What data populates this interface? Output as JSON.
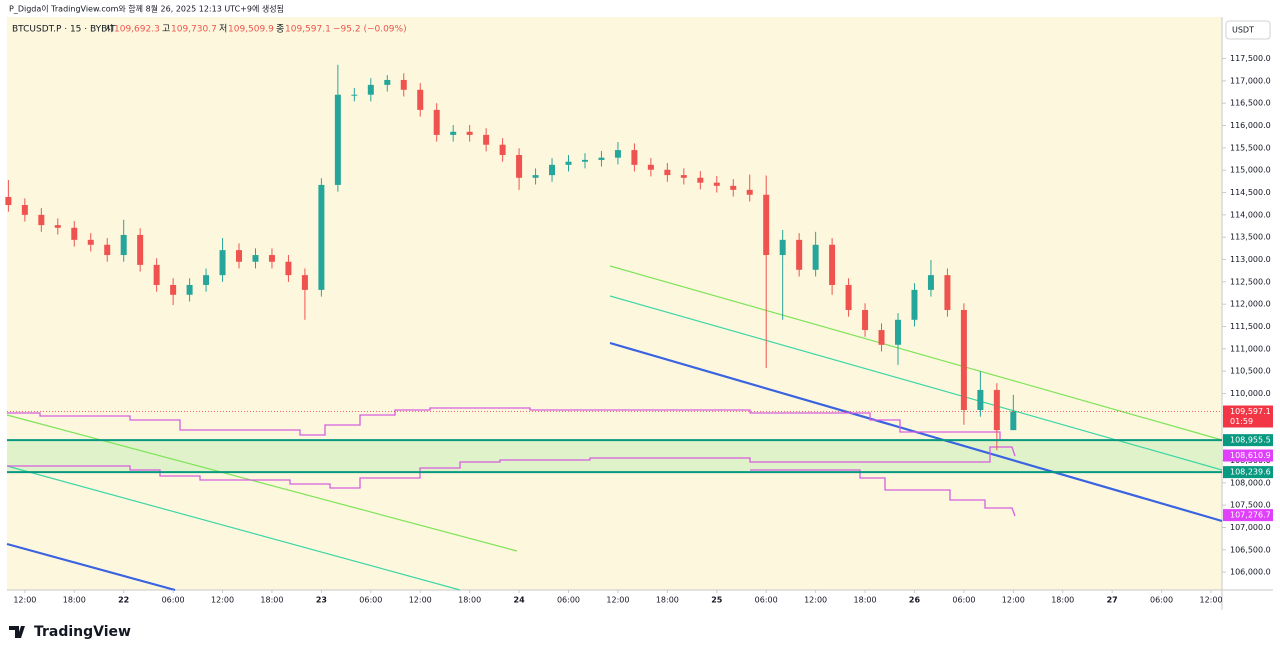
{
  "header": {
    "text": "P_Digda이 TradingView.com와 함께 8월 26, 2025 12:13 UTC+9에 생성됨"
  },
  "chart_data": {
    "type": "candlestick",
    "symbol": "BTCUSDT.P · 15 · BYBIT",
    "ohlc_legend": [
      {
        "label": "시",
        "value": "109,692.3"
      },
      {
        "label": "고",
        "value": "109,730.7"
      },
      {
        "label": "저",
        "value": "109,509.9"
      },
      {
        "label": "종",
        "value": "109,597.1"
      }
    ],
    "change": "−95.2 (−0.09%)",
    "currency": "USDT",
    "up_color": "#26a69a",
    "down_color": "#ef5350",
    "x": [
      "21 10:00",
      "21 12:00",
      "21 14:00",
      "21 16:00",
      "21 18:00",
      "21 20:00",
      "21 22:00",
      "22 00:00",
      "22 02:00",
      "22 04:00",
      "22 06:00",
      "22 08:00",
      "22 10:00",
      "22 12:00",
      "22 14:00",
      "22 16:00",
      "22 18:00",
      "22 20:00",
      "22 22:00",
      "23 00:00",
      "23 02:00",
      "23 04:00",
      "23 06:00",
      "23 08:00",
      "23 10:00",
      "23 12:00",
      "23 14:00",
      "23 16:00",
      "23 18:00",
      "23 20:00",
      "23 22:00",
      "24 00:00",
      "24 02:00",
      "24 04:00",
      "24 06:00",
      "24 08:00",
      "24 10:00",
      "24 12:00",
      "24 14:00",
      "24 16:00",
      "24 18:00",
      "24 20:00",
      "24 22:00",
      "25 00:00",
      "25 02:00",
      "25 04:00",
      "25 06:00",
      "25 08:00",
      "25 10:00",
      "25 12:00",
      "25 14:00",
      "25 16:00",
      "25 18:00",
      "25 20:00",
      "25 22:00",
      "26 00:00",
      "26 02:00",
      "26 04:00",
      "26 06:00",
      "26 08:00",
      "26 10:00",
      "26 12:00"
    ],
    "open": [
      114400,
      114220,
      114000,
      113770,
      113710,
      113440,
      113330,
      113100,
      113550,
      112880,
      112430,
      112210,
      112430,
      112650,
      113210,
      112950,
      113100,
      112950,
      112650,
      112320,
      114670,
      116690,
      116690,
      116910,
      117020,
      116800,
      116350,
      115790,
      115860,
      115790,
      115570,
      115340,
      114830,
      114890,
      115120,
      115190,
      115230,
      115280,
      115450,
      115120,
      115010,
      114890,
      114830,
      114720,
      114650,
      114560,
      114450,
      113100,
      113440,
      112770,
      113330,
      112430,
      111870,
      111420,
      111090,
      111650,
      112320,
      112650,
      111870,
      109630,
      110080,
      109180
    ],
    "high": [
      114780,
      114370,
      114150,
      113920,
      113860,
      113590,
      113480,
      113890,
      113700,
      113030,
      112580,
      112580,
      112800,
      113480,
      113360,
      113250,
      113250,
      113100,
      112800,
      114820,
      117360,
      116840,
      117060,
      117130,
      117170,
      116950,
      116500,
      116010,
      116010,
      115940,
      115720,
      115490,
      115040,
      115270,
      115340,
      115380,
      115430,
      115630,
      115600,
      115270,
      115160,
      115040,
      114980,
      114870,
      114800,
      114900,
      114880,
      113660,
      113590,
      113620,
      113480,
      112580,
      112020,
      111570,
      111800,
      112470,
      112990,
      112800,
      112020,
      110500,
      110230,
      109970
    ],
    "low": [
      114070,
      113850,
      113620,
      113560,
      113290,
      113180,
      112950,
      112950,
      112730,
      112280,
      111980,
      112060,
      112280,
      112500,
      112800,
      112800,
      112800,
      112500,
      111650,
      112170,
      114520,
      116540,
      116540,
      116760,
      116650,
      116200,
      115640,
      115640,
      115640,
      115420,
      115190,
      114560,
      114680,
      114740,
      114970,
      115040,
      115080,
      115130,
      114970,
      114860,
      114740,
      114680,
      114570,
      114500,
      114410,
      114300,
      110570,
      111650,
      112620,
      112620,
      112210,
      111720,
      111270,
      110940,
      110640,
      111500,
      112170,
      111720,
      109300,
      109480,
      108730,
      109180
    ],
    "close": [
      114220,
      114000,
      113770,
      113710,
      113440,
      113330,
      113100,
      113550,
      112880,
      112430,
      112210,
      112430,
      112650,
      113210,
      112950,
      113100,
      112950,
      112650,
      112320,
      114670,
      116690,
      116690,
      116910,
      117020,
      116800,
      116350,
      115790,
      115860,
      115790,
      115570,
      115340,
      114830,
      114890,
      115120,
      115190,
      115230,
      115280,
      115450,
      115120,
      115010,
      114890,
      114830,
      114720,
      114650,
      114560,
      114450,
      113100,
      113440,
      112770,
      113330,
      112430,
      111870,
      111420,
      111090,
      111650,
      112320,
      112650,
      111870,
      109630,
      110080,
      109180,
      109597.1
    ],
    "xlim": [
      "21 09:50",
      "27 13:20"
    ],
    "xticks": [
      {
        "value": "21 12:00",
        "label": "12:00"
      },
      {
        "value": "21 18:00",
        "label": "18:00"
      },
      {
        "value": "22 00:00",
        "label": "22"
      },
      {
        "value": "22 06:00",
        "label": "06:00"
      },
      {
        "value": "22 12:00",
        "label": "12:00"
      },
      {
        "value": "22 18:00",
        "label": "18:00"
      },
      {
        "value": "23 00:00",
        "label": "23"
      },
      {
        "value": "23 06:00",
        "label": "06:00"
      },
      {
        "value": "23 12:00",
        "label": "12:00"
      },
      {
        "value": "23 18:00",
        "label": "18:00"
      },
      {
        "value": "24 00:00",
        "label": "24"
      },
      {
        "value": "24 06:00",
        "label": "06:00"
      },
      {
        "value": "24 12:00",
        "label": "12:00"
      },
      {
        "value": "24 18:00",
        "label": "18:00"
      },
      {
        "value": "25 00:00",
        "label": "25"
      },
      {
        "value": "25 06:00",
        "label": "06:00"
      },
      {
        "value": "25 12:00",
        "label": "12:00"
      },
      {
        "value": "25 18:00",
        "label": "18:00"
      },
      {
        "value": "26 00:00",
        "label": "26"
      },
      {
        "value": "26 06:00",
        "label": "06:00"
      },
      {
        "value": "26 12:00",
        "label": "12:00"
      },
      {
        "value": "26 18:00",
        "label": "18:00"
      },
      {
        "value": "27 00:00",
        "label": "27"
      },
      {
        "value": "27 06:00",
        "label": "06:00"
      },
      {
        "value": "27 12:00",
        "label": "12:00"
      }
    ],
    "ylim": [
      105600,
      118430
    ],
    "yticks": [
      {
        "value": 106000,
        "label": "106,000.0"
      },
      {
        "value": 106500,
        "label": "106,500.0"
      },
      {
        "value": 107000,
        "label": "107,000.0"
      },
      {
        "value": 107500,
        "label": "107,500.0"
      },
      {
        "value": 108000,
        "label": "108,000.0"
      },
      {
        "value": 108500,
        "label": "108,500.0"
      },
      {
        "value": 109000,
        "label": "109,000.0"
      },
      {
        "value": 109500,
        "label": "109,500.0"
      },
      {
        "value": 110000,
        "label": "110,000.0"
      },
      {
        "value": 110500,
        "label": "110,500.0"
      },
      {
        "value": 111000,
        "label": "111,000.0"
      },
      {
        "value": 111500,
        "label": "111,500.0"
      },
      {
        "value": 112000,
        "label": "112,000.0"
      },
      {
        "value": 112500,
        "label": "112,500.0"
      },
      {
        "value": 113000,
        "label": "113,000.0"
      },
      {
        "value": 113500,
        "label": "113,500.0"
      },
      {
        "value": 114000,
        "label": "114,000.0"
      },
      {
        "value": 114500,
        "label": "114,500.0"
      },
      {
        "value": 115000,
        "label": "115,000.0"
      },
      {
        "value": 115500,
        "label": "115,500.0"
      },
      {
        "value": 116000,
        "label": "116,000.0"
      },
      {
        "value": 116500,
        "label": "116,500.0"
      },
      {
        "value": 117000,
        "label": "117,000.0"
      },
      {
        "value": 117500,
        "label": "117,500.0"
      }
    ],
    "levels": [
      {
        "value": 108955.5,
        "label": "108,955.5",
        "color": "#089981",
        "style": "horizontal"
      },
      {
        "value": 108610.9,
        "label": "108,610.9",
        "color": "#e040fb",
        "style": "indicator"
      },
      {
        "value": 108239.6,
        "label": "108,239.6",
        "color": "#089981",
        "style": "horizontal"
      },
      {
        "value": 107276.7,
        "label": "107,276.7",
        "color": "#e040fb",
        "style": "indicator"
      }
    ],
    "zone_color": "#d8f0c4",
    "last_price": {
      "value": 109597.1,
      "label": "109,597.1",
      "countdown": "01:59",
      "color": "#f23645"
    }
  },
  "footer": {
    "logo": "TradingView"
  }
}
